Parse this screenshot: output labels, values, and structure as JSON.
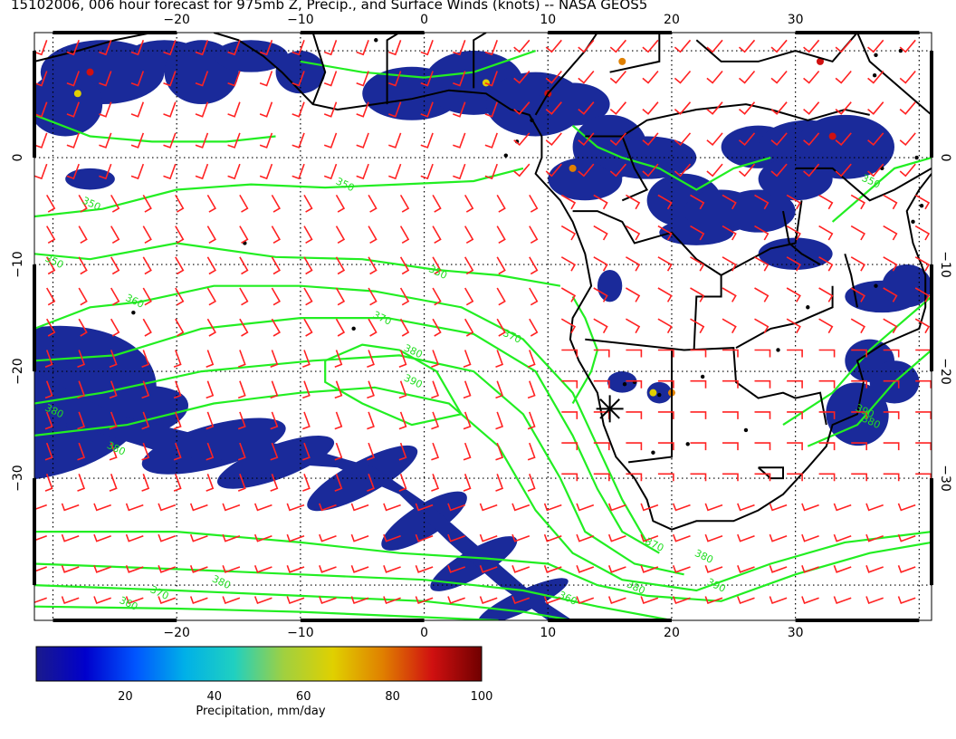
{
  "title": "15102006, 006 hour forecast for 975mb Z, Precip., and Surface Winds (knots) -- NASA GEOS5",
  "map": {
    "lon_ticks": [
      {
        "lon": -20,
        "label": "−20"
      },
      {
        "lon": -10,
        "label": "−10"
      },
      {
        "lon": 0,
        "label": "0"
      },
      {
        "lon": 10,
        "label": "10"
      },
      {
        "lon": 20,
        "label": "20"
      },
      {
        "lon": 30,
        "label": "30"
      }
    ],
    "lat_ticks": [
      {
        "lat": 0,
        "label": "0"
      },
      {
        "lat": -10,
        "label": "−10"
      },
      {
        "lat": -20,
        "label": "−20"
      },
      {
        "lat": -30,
        "label": "−30"
      }
    ],
    "contour_labels": [
      {
        "label": "350",
        "lon": -27,
        "lat": -4.6
      },
      {
        "label": "350",
        "lon": -30,
        "lat": -10
      },
      {
        "label": "350",
        "lon": -6.5,
        "lon2": 0,
        "lat": -2.8
      },
      {
        "label": "360",
        "lon": -23.5,
        "lat": -13.7
      },
      {
        "label": "350",
        "lon": 1,
        "lat": -11
      },
      {
        "label": "370",
        "lon": -3.5,
        "lat": -15.3
      },
      {
        "label": "370",
        "lon": 7,
        "lat": -17
      },
      {
        "label": "380",
        "lon": -1,
        "lat": -18.4
      },
      {
        "label": "390",
        "lon": -1,
        "lat": -21.2
      },
      {
        "label": "380",
        "lon": -30,
        "lat": -24
      },
      {
        "label": "380",
        "lon": -25,
        "lat": -27.5
      },
      {
        "label": "370",
        "lon": 18.5,
        "lat": -36.5
      },
      {
        "label": "380",
        "lon": 22.5,
        "lat": -37.6
      },
      {
        "label": "390",
        "lon": 23.5,
        "lat": -40.3
      },
      {
        "label": "390",
        "lon": 35.5,
        "lat": -24
      },
      {
        "label": "380",
        "lon": 36,
        "lat": -25
      },
      {
        "label": "360",
        "lon": -24,
        "lat": -42
      },
      {
        "label": "370",
        "lon": -21.5,
        "lat": -41
      },
      {
        "label": "380",
        "lon": -16.5,
        "lat": -40
      },
      {
        "label": "380",
        "lon": 17,
        "lat": -40.5
      },
      {
        "label": "360",
        "lon": 11.5,
        "lat": -41.5
      },
      {
        "label": "350",
        "lon": 36,
        "lat": -2.5
      }
    ]
  },
  "colorbar": {
    "min": 0,
    "max": 100,
    "ticks": [
      "20",
      "40",
      "60",
      "80",
      "100"
    ],
    "label": "Precipitation, mm/day",
    "colors": [
      "#1a1a8c",
      "#0000cc",
      "#0055ff",
      "#00b0e8",
      "#20d0c0",
      "#a0d040",
      "#e0d000",
      "#e08000",
      "#d01010",
      "#700000"
    ]
  },
  "colors": {
    "wind_barb": "#ff2222",
    "contour": "#22ee22",
    "coast": "#000000",
    "precip": "#1a2a9a"
  },
  "marker": {
    "symbol": "asterisk",
    "lon": 15,
    "lat": -23.5
  }
}
